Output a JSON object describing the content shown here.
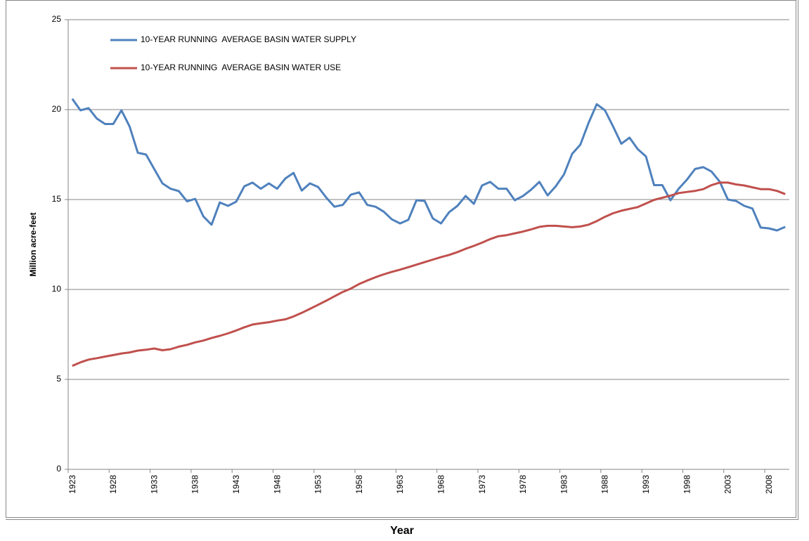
{
  "chart_data": {
    "type": "line",
    "xlabel": "Year",
    "ylabel": "Million acre-feet",
    "categories": [
      "1923",
      null,
      null,
      null,
      null,
      "1928",
      null,
      null,
      null,
      null,
      "1933",
      null,
      null,
      null,
      null,
      "1938",
      null,
      null,
      null,
      null,
      "1943",
      null,
      null,
      null,
      null,
      "1948",
      null,
      null,
      null,
      null,
      "1953",
      null,
      null,
      null,
      null,
      "1958",
      null,
      null,
      null,
      null,
      "1963",
      null,
      null,
      null,
      null,
      "1968",
      null,
      null,
      null,
      null,
      "1973",
      null,
      null,
      null,
      null,
      "1978",
      null,
      null,
      null,
      null,
      "1983",
      null,
      null,
      null,
      null,
      "1988",
      null,
      null,
      null,
      null,
      "1993",
      null,
      null,
      null,
      null,
      "1998",
      null,
      null,
      null,
      null,
      "2003",
      null,
      null,
      null,
      null,
      "2008",
      null,
      null
    ],
    "series": [
      {
        "name": "10-YEAR RUNNING  AVERAGE BASIN WATER SUPPLY",
        "color": "#4f81bd",
        "values": [
          20.6,
          19.96,
          20.08,
          19.5,
          19.2,
          19.2,
          19.96,
          19.06,
          17.6,
          17.5,
          16.7,
          15.9,
          15.6,
          15.47,
          14.9,
          15.04,
          14.06,
          13.6,
          14.84,
          14.65,
          14.88,
          15.74,
          15.94,
          15.6,
          15.9,
          15.6,
          16.17,
          16.48,
          15.5,
          15.9,
          15.7,
          15.1,
          14.6,
          14.7,
          15.27,
          15.4,
          14.7,
          14.6,
          14.33,
          13.9,
          13.67,
          13.87,
          14.96,
          14.92,
          13.95,
          13.67,
          14.3,
          14.65,
          15.2,
          14.76,
          15.78,
          15.98,
          15.6,
          15.6,
          14.96,
          15.2,
          15.55,
          15.98,
          15.23,
          15.74,
          16.4,
          17.54,
          18.05,
          19.26,
          20.3,
          19.96,
          19.06,
          18.1,
          18.44,
          17.8,
          17.4,
          15.8,
          15.8,
          14.96,
          15.6,
          16.1,
          16.7,
          16.8,
          16.56,
          16.0,
          15.0,
          14.92,
          14.65,
          14.5,
          13.44,
          13.4,
          13.28,
          13.48
        ]
      },
      {
        "name": "10-YEAR RUNNING  AVERAGE BASIN WATER USE",
        "color": "#c0504d",
        "values": [
          5.75,
          5.95,
          6.1,
          6.18,
          6.27,
          6.35,
          6.44,
          6.5,
          6.6,
          6.65,
          6.72,
          6.62,
          6.68,
          6.82,
          6.92,
          7.06,
          7.16,
          7.3,
          7.42,
          7.56,
          7.72,
          7.9,
          8.05,
          8.12,
          8.18,
          8.27,
          8.34,
          8.5,
          8.7,
          8.92,
          9.15,
          9.38,
          9.62,
          9.86,
          10.05,
          10.3,
          10.5,
          10.68,
          10.84,
          10.98,
          11.1,
          11.24,
          11.38,
          11.52,
          11.66,
          11.8,
          11.92,
          12.08,
          12.26,
          12.42,
          12.6,
          12.8,
          12.96,
          13.02,
          13.12,
          13.22,
          13.34,
          13.48,
          13.54,
          13.54,
          13.5,
          13.46,
          13.5,
          13.6,
          13.8,
          14.04,
          14.24,
          14.38,
          14.48,
          14.58,
          14.78,
          14.98,
          15.1,
          15.22,
          15.36,
          15.42,
          15.48,
          15.58,
          15.8,
          15.94,
          15.94,
          15.84,
          15.78,
          15.68,
          15.58,
          15.58,
          15.48,
          15.3
        ]
      }
    ],
    "ylim": [
      0,
      25
    ],
    "yticks": [
      0,
      5,
      10,
      15,
      20,
      25
    ],
    "grid": true
  }
}
